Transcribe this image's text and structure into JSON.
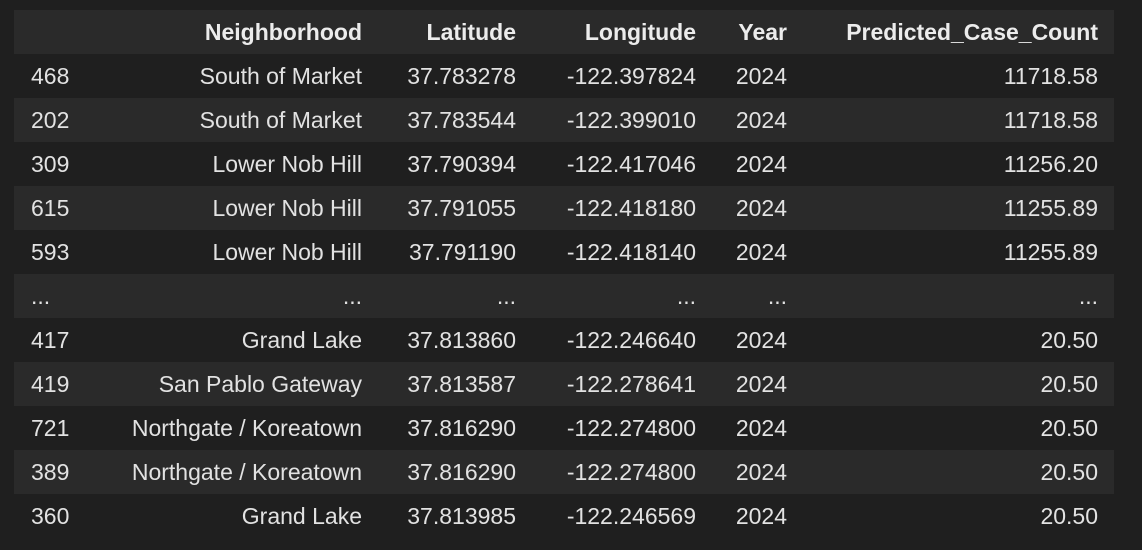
{
  "table": {
    "columns": [
      "",
      "Neighborhood",
      "Latitude",
      "Longitude",
      "Year",
      "Predicted_Case_Count"
    ],
    "rows": [
      [
        "468",
        "South of Market",
        "37.783278",
        "-122.397824",
        "2024",
        "11718.58"
      ],
      [
        "202",
        "South of Market",
        "37.783544",
        "-122.399010",
        "2024",
        "11718.58"
      ],
      [
        "309",
        "Lower Nob Hill",
        "37.790394",
        "-122.417046",
        "2024",
        "11256.20"
      ],
      [
        "615",
        "Lower Nob Hill",
        "37.791055",
        "-122.418180",
        "2024",
        "11255.89"
      ],
      [
        "593",
        "Lower Nob Hill",
        "37.791190",
        "-122.418140",
        "2024",
        "11255.89"
      ],
      [
        "...",
        "...",
        "...",
        "...",
        "...",
        "..."
      ],
      [
        "417",
        "Grand Lake",
        "37.813860",
        "-122.246640",
        "2024",
        "20.50"
      ],
      [
        "419",
        "San Pablo Gateway",
        "37.813587",
        "-122.278641",
        "2024",
        "20.50"
      ],
      [
        "721",
        "Northgate / Koreatown",
        "37.816290",
        "-122.274800",
        "2024",
        "20.50"
      ],
      [
        "389",
        "Northgate / Koreatown",
        "37.816290",
        "-122.274800",
        "2024",
        "20.50"
      ],
      [
        "360",
        "Grand Lake",
        "37.813985",
        "-122.246569",
        "2024",
        "20.50"
      ]
    ]
  }
}
